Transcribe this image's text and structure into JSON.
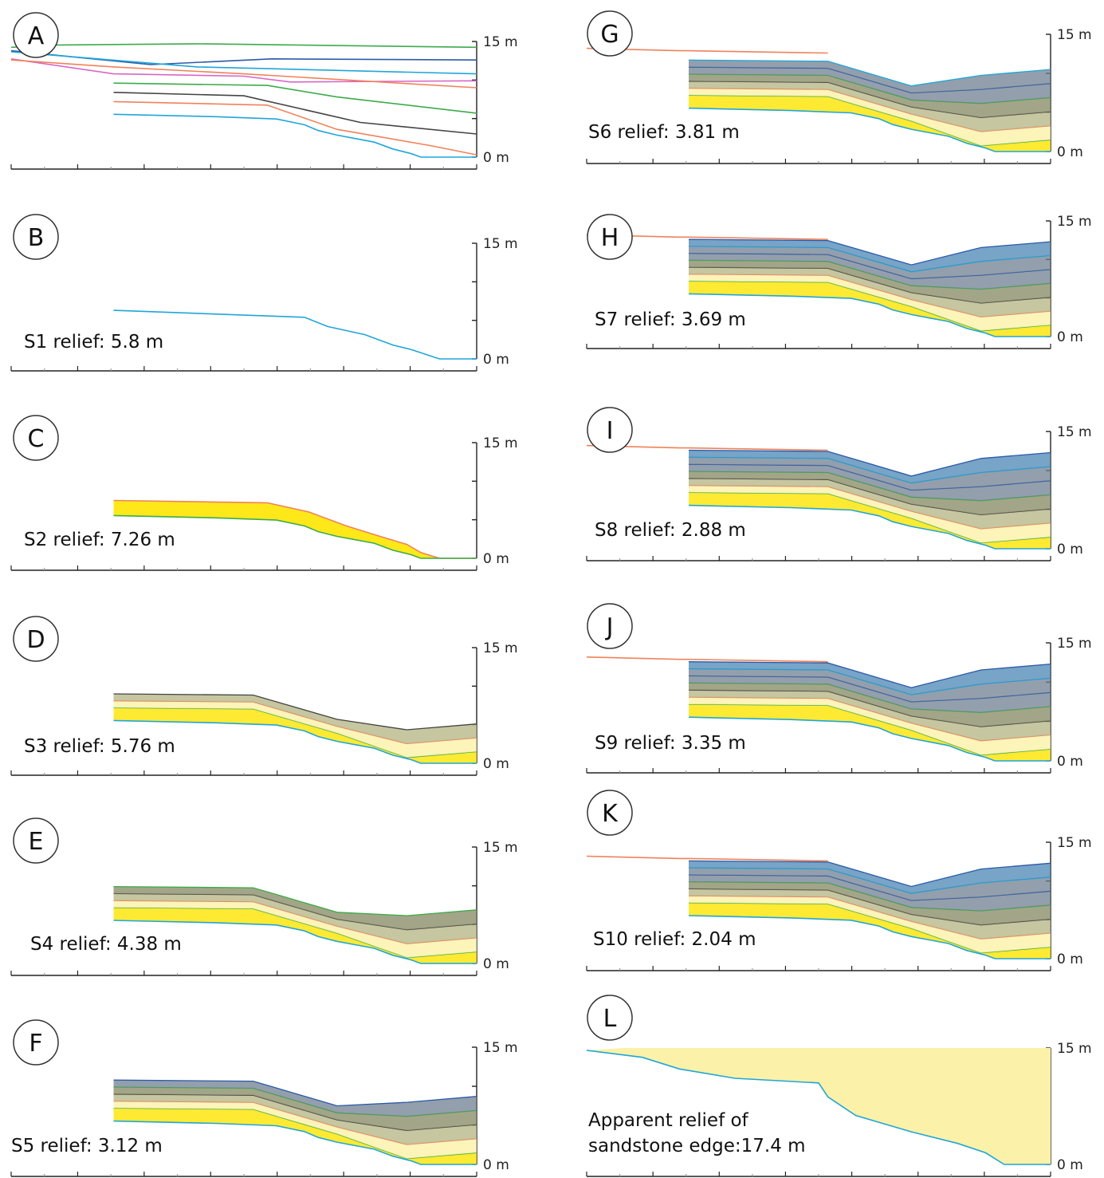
{
  "colors": {
    "green": "#3cab4a",
    "blue": "#2c5aa8",
    "cyan": "#1fa6d8",
    "pink": "#d966c4",
    "orange": "#f0825a",
    "black": "#444444",
    "yellow": "#ffe500",
    "fill_tan": "#b8b88a",
    "fill_olive": "#8c8f6a",
    "fill_steel": "#6f7f90",
    "fill_water": "#4a86b4",
    "fill_pale": "#fbf1a8"
  },
  "panels": [
    {
      "letter": "A",
      "top_label": "15 m",
      "bottom_label": "0 m",
      "relief": ""
    },
    {
      "letter": "B",
      "top_label": "15 m",
      "bottom_label": "0 m",
      "relief": "S1 relief: 5.8 m"
    },
    {
      "letter": "C",
      "top_label": "15 m",
      "bottom_label": "0 m",
      "relief": "S2 relief: 7.26 m"
    },
    {
      "letter": "D",
      "top_label": "15 m",
      "bottom_label": "0 m",
      "relief": "S3 relief: 5.76 m"
    },
    {
      "letter": "E",
      "top_label": "15 m",
      "bottom_label": "0 m",
      "relief": "S4 relief: 4.38 m"
    },
    {
      "letter": "F",
      "top_label": "15 m",
      "bottom_label": "0 m",
      "relief": "S5 relief: 3.12 m"
    },
    {
      "letter": "G",
      "top_label": "15 m",
      "bottom_label": "0 m",
      "relief": "S6 relief: 3.81 m"
    },
    {
      "letter": "H",
      "top_label": "15 m",
      "bottom_label": "0 m",
      "relief": "S7 relief: 3.69 m"
    },
    {
      "letter": "I",
      "top_label": "15 m",
      "bottom_label": "0 m",
      "relief": "S8 relief: 2.88 m"
    },
    {
      "letter": "J",
      "top_label": "15 m",
      "bottom_label": "0 m",
      "relief": "S9 relief: 3.35 m"
    },
    {
      "letter": "K",
      "top_label": "15 m",
      "bottom_label": "0 m",
      "relief": "S10 relief: 2.04 m"
    },
    {
      "letter": "L",
      "top_label": "15 m",
      "bottom_label": "0 m",
      "relief": "Apparent relief of sandstone edge:17.4 m"
    }
  ]
}
